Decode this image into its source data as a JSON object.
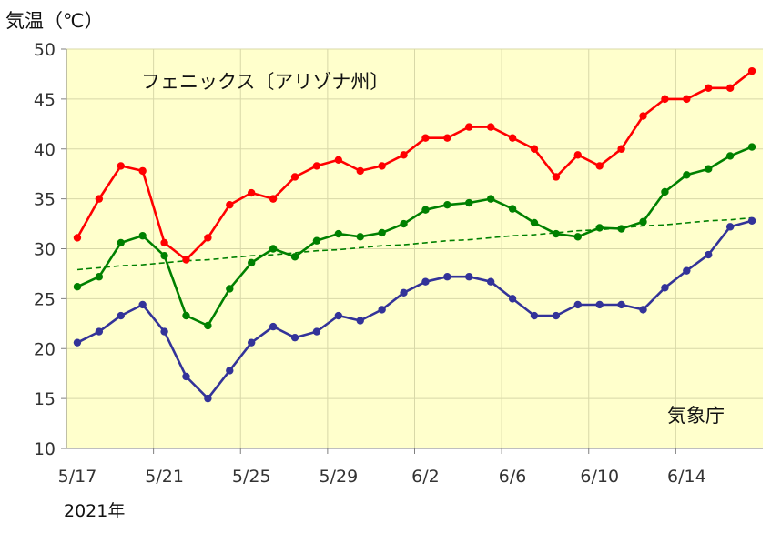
{
  "chart_data": {
    "type": "line",
    "title": "フェニックス〔アリゾナ州〕",
    "ylabel": "気温（℃）",
    "xlabel": "2021年",
    "source": "気象庁",
    "ylim": [
      10,
      50
    ],
    "yticks": [
      10,
      15,
      20,
      25,
      30,
      35,
      40,
      45,
      50
    ],
    "xlim": [
      -0.5,
      31.5
    ],
    "xtick_labels": [
      {
        "x": 0,
        "label": "5/17"
      },
      {
        "x": 4,
        "label": "5/21"
      },
      {
        "x": 8,
        "label": "5/25"
      },
      {
        "x": 12,
        "label": "5/29"
      },
      {
        "x": 16,
        "label": "6/2"
      },
      {
        "x": 20,
        "label": "6/6"
      },
      {
        "x": 24,
        "label": "6/10"
      },
      {
        "x": 28,
        "label": "6/14"
      }
    ],
    "grid": true,
    "background": "#ffffcc",
    "dates": [
      "5/17",
      "5/18",
      "5/19",
      "5/20",
      "5/21",
      "5/22",
      "5/23",
      "5/24",
      "5/25",
      "5/26",
      "5/27",
      "5/28",
      "5/29",
      "5/30",
      "5/31",
      "6/1",
      "6/2",
      "6/3",
      "6/4",
      "6/5",
      "6/6",
      "6/7",
      "6/8",
      "6/9",
      "6/10",
      "6/11",
      "6/12",
      "6/13",
      "6/14",
      "6/15",
      "6/16",
      "6/17"
    ],
    "series": [
      {
        "color": "#ff0000",
        "style": "solid",
        "values": [
          31.1,
          35.0,
          38.3,
          37.8,
          30.6,
          28.9,
          31.1,
          34.4,
          35.6,
          35.0,
          37.2,
          38.3,
          38.9,
          37.8,
          38.3,
          39.4,
          41.1,
          41.1,
          42.2,
          42.2,
          41.1,
          40.0,
          37.2,
          39.4,
          38.3,
          40.0,
          43.3,
          45.0,
          45.0,
          46.1,
          46.1,
          47.8
        ]
      },
      {
        "color": "#008000",
        "style": "solid",
        "values": [
          26.2,
          27.2,
          30.6,
          31.3,
          29.3,
          23.3,
          22.3,
          26.0,
          28.6,
          30.0,
          29.2,
          30.8,
          31.5,
          31.2,
          31.6,
          32.5,
          33.9,
          34.4,
          34.6,
          35.0,
          34.0,
          32.6,
          31.5,
          31.2,
          32.1,
          32.0,
          32.7,
          35.7,
          37.4,
          38.0,
          39.3,
          40.2
        ]
      },
      {
        "color": "#333399",
        "style": "solid",
        "values": [
          20.6,
          21.7,
          23.3,
          24.4,
          21.7,
          17.2,
          15.0,
          17.8,
          20.6,
          22.2,
          21.1,
          21.7,
          23.3,
          22.8,
          23.9,
          25.6,
          26.7,
          27.2,
          27.2,
          26.7,
          25.0,
          23.3,
          23.3,
          24.4,
          24.4,
          24.4,
          23.9,
          26.1,
          27.8,
          29.4,
          32.2,
          32.8
        ]
      },
      {
        "color": "#008000",
        "style": "dashed",
        "values": [
          27.9,
          28.1,
          28.3,
          28.4,
          28.6,
          28.8,
          28.9,
          29.1,
          29.3,
          29.4,
          29.6,
          29.8,
          29.9,
          30.1,
          30.3,
          30.4,
          30.6,
          30.8,
          30.9,
          31.1,
          31.3,
          31.4,
          31.6,
          31.8,
          31.9,
          32.1,
          32.3,
          32.4,
          32.6,
          32.8,
          32.9,
          33.1
        ]
      }
    ]
  }
}
